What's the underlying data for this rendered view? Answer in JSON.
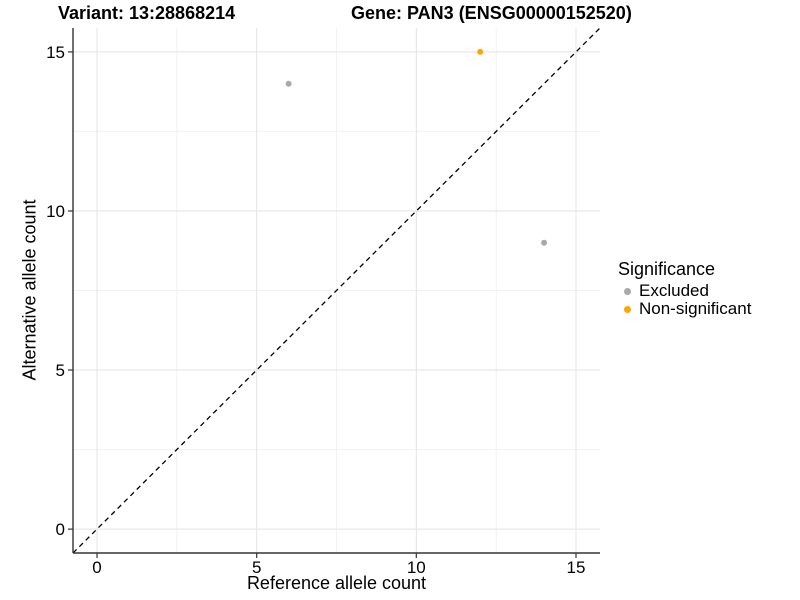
{
  "chart_data": {
    "type": "scatter",
    "title_left": "Variant: 13:28868214",
    "title_right": "Gene: PAN3 (ENSG00000152520)",
    "xlabel": "Reference allele count",
    "ylabel": "Alternative allele count",
    "xlim": [
      -0.75,
      15.75
    ],
    "ylim": [
      -0.75,
      15.75
    ],
    "x_ticks": [
      0,
      5,
      10,
      15
    ],
    "y_ticks": [
      0,
      5,
      10,
      15
    ],
    "grid": {
      "show": true,
      "minor": [
        2.5,
        7.5,
        12.5
      ]
    },
    "identity_line": {
      "from": [
        -0.75,
        -0.75
      ],
      "to": [
        15.75,
        15.75
      ],
      "style": "dashed",
      "color": "#000000"
    },
    "legend": {
      "title": "Significance",
      "position": "right"
    },
    "series": [
      {
        "name": "Excluded",
        "color": "#A9A9A9",
        "points": [
          {
            "x": 6,
            "y": 14
          },
          {
            "x": 14,
            "y": 9
          }
        ]
      },
      {
        "name": "Non-significant",
        "color": "#FFA500",
        "points": [
          {
            "x": 12,
            "y": 15
          }
        ]
      }
    ],
    "colors": {
      "axis": "#333333",
      "grid_major": "#E3E3E3",
      "grid_minor": "#F2F2F2",
      "background": "#FFFFFF"
    }
  }
}
